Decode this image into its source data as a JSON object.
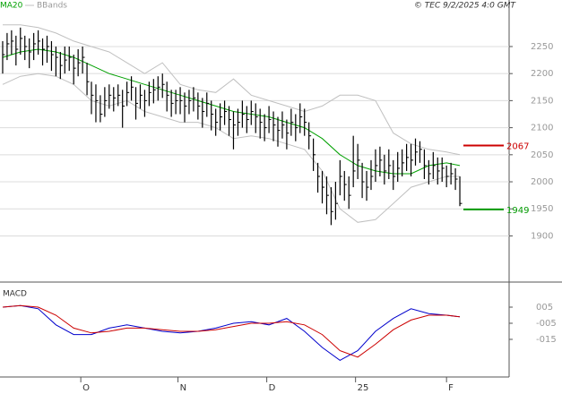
{
  "chart_data": [
    {
      "type": "ohlc",
      "legend": [
        "MA20",
        "BBands"
      ],
      "source": "© TEC 9/2/2025 4:0 GMT",
      "xlim": [
        -0.6,
        114.1
      ],
      "xticks": [
        {
          "value": 17.6,
          "label": "O"
        },
        {
          "value": 39.5,
          "label": "N"
        },
        {
          "value": 59.5,
          "label": "D"
        },
        {
          "value": 79.5,
          "label": "25"
        },
        {
          "value": 100,
          "label": "F"
        }
      ],
      "ylim": [
        1818,
        2336
      ],
      "yticks": [
        1900,
        1950,
        2000,
        2050,
        2100,
        2150,
        2200,
        2250
      ],
      "grid": true,
      "close": [
        2235,
        2255,
        2260,
        2245,
        2265,
        2250,
        2240,
        2255,
        2260,
        2245,
        2250,
        2235,
        2230,
        2215,
        2225,
        2230,
        2210,
        2220,
        2230,
        2185,
        2160,
        2150,
        2125,
        2150,
        2160,
        2155,
        2160,
        2140,
        2165,
        2175,
        2145,
        2160,
        2150,
        2165,
        2170,
        2175,
        2180,
        2160,
        2145,
        2150,
        2150,
        2140,
        2150,
        2155,
        2140,
        2130,
        2145,
        2125,
        2110,
        2120,
        2130,
        2115,
        2105,
        2110,
        2125,
        2115,
        2130,
        2120,
        2110,
        2100,
        2115,
        2105,
        2095,
        2105,
        2090,
        2110,
        2100,
        2120,
        2110,
        2085,
        2050,
        2010,
        1990,
        1975,
        1945,
        1960,
        2010,
        1995,
        1975,
        2020,
        2040,
        2000,
        1990,
        2010,
        2030,
        2040,
        2020,
        2030,
        2010,
        2025,
        2035,
        2045,
        2040,
        2055,
        2060,
        2030,
        2015,
        2030,
        2020,
        2025,
        2010,
        2015,
        2005,
        1960
      ],
      "high": [
        2260,
        2275,
        2280,
        2270,
        2285,
        2270,
        2265,
        2275,
        2280,
        2265,
        2270,
        2260,
        2250,
        2240,
        2250,
        2250,
        2235,
        2245,
        2250,
        2220,
        2185,
        2180,
        2160,
        2175,
        2180,
        2175,
        2180,
        2170,
        2185,
        2195,
        2175,
        2180,
        2170,
        2185,
        2190,
        2195,
        2200,
        2185,
        2170,
        2170,
        2175,
        2165,
        2170,
        2175,
        2165,
        2155,
        2165,
        2150,
        2135,
        2145,
        2150,
        2140,
        2130,
        2135,
        2150,
        2140,
        2150,
        2145,
        2135,
        2125,
        2140,
        2130,
        2120,
        2130,
        2115,
        2135,
        2125,
        2145,
        2135,
        2110,
        2080,
        2035,
        2020,
        2010,
        1990,
        2000,
        2040,
        2020,
        2010,
        2085,
        2070,
        2035,
        2020,
        2040,
        2060,
        2065,
        2050,
        2060,
        2040,
        2055,
        2060,
        2070,
        2070,
        2080,
        2075,
        2060,
        2040,
        2055,
        2045,
        2045,
        2030,
        2035,
        2025,
        2010
      ],
      "low": [
        2200,
        2225,
        2235,
        2215,
        2235,
        2225,
        2210,
        2225,
        2235,
        2215,
        2220,
        2205,
        2195,
        2190,
        2200,
        2205,
        2180,
        2195,
        2200,
        2160,
        2125,
        2110,
        2110,
        2120,
        2135,
        2130,
        2140,
        2100,
        2140,
        2150,
        2115,
        2135,
        2120,
        2140,
        2145,
        2150,
        2155,
        2130,
        2120,
        2125,
        2125,
        2110,
        2125,
        2130,
        2115,
        2100,
        2120,
        2095,
        2085,
        2095,
        2105,
        2085,
        2060,
        2085,
        2100,
        2090,
        2105,
        2090,
        2080,
        2075,
        2090,
        2075,
        2065,
        2080,
        2060,
        2085,
        2075,
        2090,
        2085,
        2060,
        2020,
        1980,
        1960,
        1940,
        1920,
        1930,
        1975,
        1965,
        1950,
        1990,
        2005,
        1970,
        1965,
        1985,
        2000,
        2010,
        1995,
        2005,
        1985,
        2000,
        2010,
        2020,
        2010,
        2030,
        2035,
        2005,
        1995,
        2005,
        1995,
        2000,
        1990,
        1995,
        1985,
        1955
      ],
      "line_x": [
        0,
        4,
        8,
        12,
        16,
        20,
        24,
        28,
        32,
        36,
        40,
        44,
        48,
        52,
        56,
        60,
        64,
        68,
        72,
        76,
        80,
        84,
        88,
        92,
        96,
        100,
        103
      ],
      "ma": {
        "name": "MA20",
        "color": "#00a000",
        "values": [
          2230,
          2240,
          2245,
          2240,
          2230,
          2215,
          2200,
          2190,
          2180,
          2170,
          2160,
          2150,
          2140,
          2130,
          2125,
          2120,
          2110,
          2100,
          2080,
          2050,
          2030,
          2020,
          2015,
          2015,
          2030,
          2035,
          2030
        ]
      },
      "bbands": {
        "name": "BBands",
        "color": "#c0c0c0",
        "upper": [
          2290,
          2290,
          2285,
          2275,
          2260,
          2250,
          2240,
          2220,
          2200,
          2220,
          2180,
          2170,
          2165,
          2190,
          2160,
          2150,
          2140,
          2130,
          2140,
          2160,
          2160,
          2150,
          2090,
          2070,
          2060,
          2055,
          2050
        ],
        "lower": [
          2180,
          2195,
          2200,
          2195,
          2180,
          2150,
          2140,
          2150,
          2130,
          2120,
          2110,
          2110,
          2100,
          2080,
          2085,
          2080,
          2070,
          2060,
          2020,
          1950,
          1925,
          1930,
          1960,
          1990,
          2000,
          2010,
          2010
        ]
      },
      "levels": [
        {
          "value": 2067,
          "color": "#cc0000"
        },
        {
          "value": 1949,
          "color": "#009900"
        }
      ]
    },
    {
      "type": "macd",
      "title": "MACD",
      "xlim": [
        -0.6,
        114.1
      ],
      "ylim": [
        -0.378,
        0.189
      ],
      "yticks": [
        {
          "value": 0.05,
          "label": "005"
        },
        {
          "value": -0.05,
          "label": "-005"
        },
        {
          "value": -0.15,
          "label": "-015"
        }
      ],
      "x": [
        0,
        4,
        8,
        12,
        16,
        20,
        24,
        28,
        32,
        36,
        40,
        44,
        48,
        52,
        56,
        60,
        64,
        68,
        72,
        76,
        80,
        84,
        88,
        92,
        96,
        100,
        103
      ],
      "series": [
        {
          "color": "#0000cc",
          "values": [
            0.05,
            0.06,
            0.04,
            -0.06,
            -0.12,
            -0.12,
            -0.08,
            -0.06,
            -0.08,
            -0.1,
            -0.11,
            -0.1,
            -0.08,
            -0.05,
            -0.04,
            -0.06,
            -0.02,
            -0.1,
            -0.2,
            -0.28,
            -0.22,
            -0.1,
            -0.02,
            0.04,
            0.01,
            0.0,
            -0.01
          ]
        },
        {
          "color": "#cc0000",
          "values": [
            0.05,
            0.06,
            0.05,
            0.0,
            -0.08,
            -0.11,
            -0.1,
            -0.08,
            -0.08,
            -0.09,
            -0.1,
            -0.1,
            -0.09,
            -0.07,
            -0.05,
            -0.05,
            -0.04,
            -0.06,
            -0.12,
            -0.22,
            -0.26,
            -0.18,
            -0.09,
            -0.03,
            0.0,
            0.0,
            -0.01
          ]
        }
      ]
    }
  ]
}
